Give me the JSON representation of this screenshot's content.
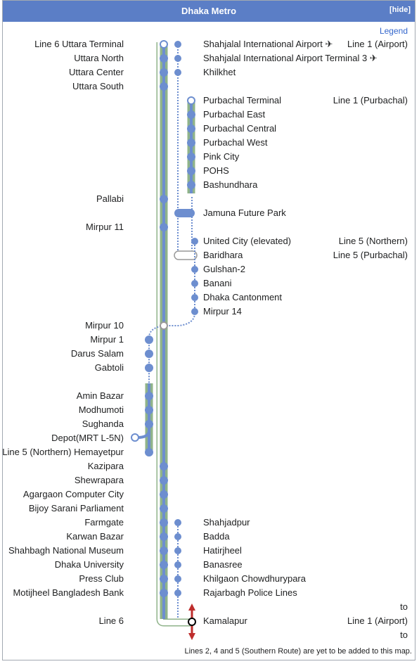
{
  "header": {
    "title": "Dhaka Metro",
    "hide_label": "[hide]"
  },
  "legend_label": "Legend",
  "left_labels": [
    "Line 6 Uttara Terminal",
    "Uttara North",
    "Uttara Center",
    "Uttara South",
    "Pallabi",
    "Mirpur 11",
    "Mirpur 10",
    "Mirpur 1",
    "Darus Salam",
    "Gabtoli",
    "Amin Bazar",
    "Modhumoti",
    "Sughanda",
    "Depot(MRT L-5N)",
    "Line 5 (Northern) Hemayetpur",
    "Kazipara",
    "Shewrapara",
    "Agargaon Computer City",
    "Bijoy Sarani Parliament",
    "Farmgate",
    "Karwan Bazar",
    "Shahbagh National Museum",
    "Dhaka University",
    "Press Club",
    "Motijheel Bangladesh Bank",
    "Line 6"
  ],
  "right_labels": [
    "Shahjalal International Airport ✈",
    "Shahjalal International Airport Terminal 3 ✈",
    "Khilkhet",
    "Purbachal Terminal",
    "Purbachal East",
    "Purbachal Central",
    "Purbachal West",
    "Pink City",
    "POHS",
    "Bashundhara",
    "Jamuna Future Park",
    "United City (elevated)",
    "Baridhara",
    "Gulshan-2",
    "Banani",
    "Dhaka Cantonment",
    "Mirpur 14",
    "Shahjadpur",
    "Badda",
    "Hatirjheel",
    "Banasree",
    "Khilgaon Chowdhurypara",
    "Rajarbagh Police Lines",
    "Kamalapur"
  ],
  "far_right_labels": [
    "Line 1 (Airport)",
    "Line 1 (Purbachal)",
    "Line 5 (Northern)",
    "Line 5 (Purbachal)",
    "to",
    "Line 1 (Airport)",
    "to"
  ],
  "footer_note": "Lines 2, 4 and 5 (Southern Route) are yet to be added to this map.",
  "colors": {
    "header": "#5b7ec6",
    "line": "#6d8ecf",
    "outline": "#8fb38a",
    "arrow": "#be2d2c"
  }
}
